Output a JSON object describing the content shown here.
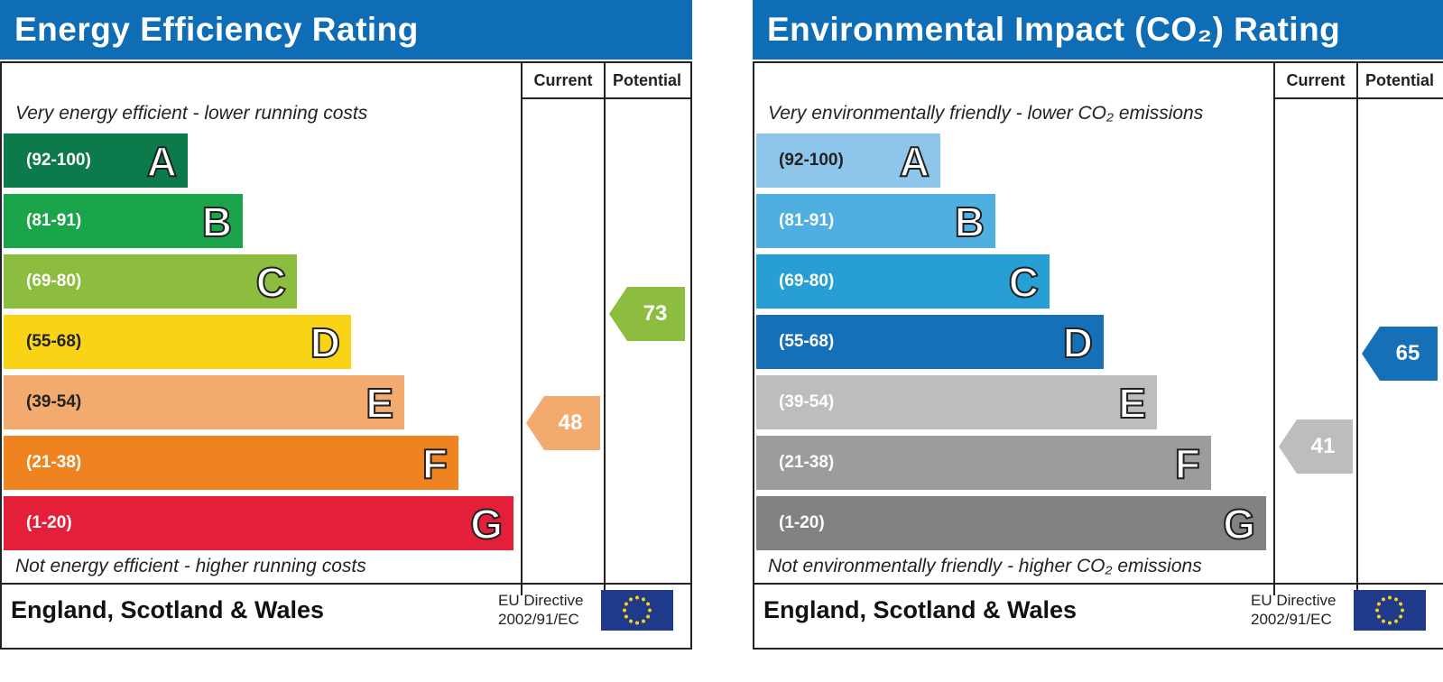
{
  "chart_data": [
    {
      "type": "bar",
      "title": "Energy Efficiency Rating",
      "columns": [
        "Current",
        "Potential"
      ],
      "top_note": "Very energy efficient - lower running costs",
      "bottom_note": "Not energy efficient - higher running costs",
      "bands": [
        {
          "range": "(92-100)",
          "letter": "A",
          "color": "#0c7a4a"
        },
        {
          "range": "(81-91)",
          "letter": "B",
          "color": "#1ba54b"
        },
        {
          "range": "(69-80)",
          "letter": "C",
          "color": "#8cbd3f"
        },
        {
          "range": "(55-68)",
          "letter": "D",
          "color": "#f9d316"
        },
        {
          "range": "(39-54)",
          "letter": "E",
          "color": "#f3aa6e"
        },
        {
          "range": "(21-38)",
          "letter": "F",
          "color": "#ee8320"
        },
        {
          "range": "(1-20)",
          "letter": "G",
          "color": "#e41f3a"
        }
      ],
      "current": {
        "value": "48",
        "band": "E",
        "color": "#f3aa6e"
      },
      "potential": {
        "value": "73",
        "band": "C",
        "color": "#8cbd3f"
      },
      "footer_region": "England, Scotland & Wales",
      "footer_directive_line1": "EU Directive",
      "footer_directive_line2": "2002/91/EC"
    },
    {
      "type": "bar",
      "title": "Environmental Impact (CO₂) Rating",
      "columns": [
        "Current",
        "Potential"
      ],
      "top_note": "Very environmentally friendly - lower CO₂ emissions",
      "bottom_note": "Not environmentally friendly - higher CO₂ emissions",
      "bands": [
        {
          "range": "(92-100)",
          "letter": "A",
          "color": "#8ec5ea"
        },
        {
          "range": "(81-91)",
          "letter": "B",
          "color": "#4fafe0"
        },
        {
          "range": "(69-80)",
          "letter": "C",
          "color": "#289fd4"
        },
        {
          "range": "(55-68)",
          "letter": "D",
          "color": "#1570b8"
        },
        {
          "range": "(39-54)",
          "letter": "E",
          "color": "#bebdbd"
        },
        {
          "range": "(21-38)",
          "letter": "F",
          "color": "#9c9c9c"
        },
        {
          "range": "(1-20)",
          "letter": "G",
          "color": "#828282"
        }
      ],
      "current": {
        "value": "41",
        "band": "E",
        "color": "#bebdbd"
      },
      "potential": {
        "value": "65",
        "band": "D",
        "color": "#1570b8"
      },
      "footer_region": "England, Scotland & Wales",
      "footer_directive_line1": "EU Directive",
      "footer_directive_line2": "2002/91/EC"
    }
  ]
}
